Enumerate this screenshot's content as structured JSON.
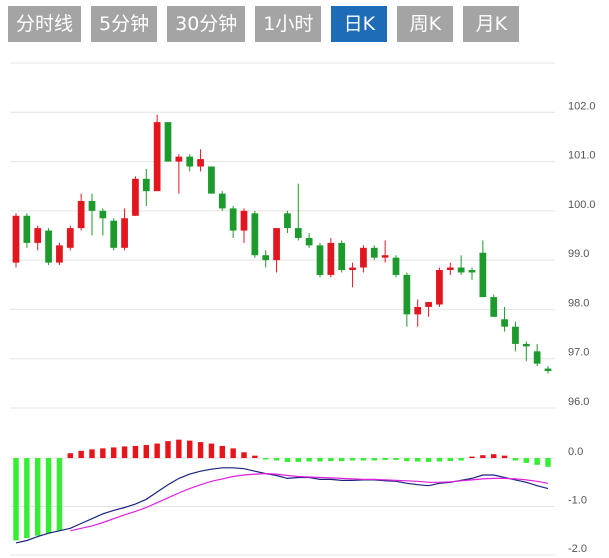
{
  "tabs": [
    "分时线",
    "5分钟",
    "30分钟",
    "1小时",
    "日K",
    "周K",
    "月K"
  ],
  "active_tab": 4,
  "chart_data": [
    {
      "type": "candlestick",
      "up_color": "#e3161f",
      "down_color": "#1d9a2c",
      "ylim": [
        96,
        103
      ],
      "yticks": [
        {
          "value": 96,
          "label": "96.0"
        },
        {
          "value": 97,
          "label": "97.0"
        },
        {
          "value": 98,
          "label": "98.0"
        },
        {
          "value": 99,
          "label": "99.0"
        },
        {
          "value": 100,
          "label": "100.0"
        },
        {
          "value": 101,
          "label": "101.0"
        },
        {
          "value": 102,
          "label": "102.0"
        },
        103
      ],
      "ohlc": [
        [
          98.95,
          99.95,
          98.85,
          99.9
        ],
        [
          99.9,
          99.95,
          99.25,
          99.35
        ],
        [
          99.35,
          99.7,
          99.2,
          99.65
        ],
        [
          99.6,
          99.65,
          98.9,
          98.95
        ],
        [
          98.95,
          99.35,
          98.9,
          99.3
        ],
        [
          99.25,
          99.7,
          99.2,
          99.65
        ],
        [
          99.65,
          100.35,
          99.6,
          100.2
        ],
        [
          100.2,
          100.35,
          99.5,
          100.0
        ],
        [
          100.0,
          100.05,
          99.5,
          99.85
        ],
        [
          99.8,
          99.85,
          99.2,
          99.25
        ],
        [
          99.25,
          100.05,
          99.2,
          99.85
        ],
        [
          99.9,
          100.7,
          99.9,
          100.65
        ],
        [
          100.65,
          100.85,
          100.1,
          100.4
        ],
        [
          100.4,
          101.95,
          100.4,
          101.8
        ],
        [
          101.8,
          101.8,
          101.0,
          101.0
        ],
        [
          101.0,
          101.15,
          100.35,
          101.1
        ],
        [
          101.1,
          101.15,
          100.8,
          100.9
        ],
        [
          100.9,
          101.25,
          100.8,
          101.05
        ],
        [
          100.9,
          100.9,
          100.35,
          100.35
        ],
        [
          100.35,
          100.4,
          100.0,
          100.05
        ],
        [
          100.05,
          100.1,
          99.45,
          99.6
        ],
        [
          99.6,
          100.05,
          99.35,
          100.0
        ],
        [
          99.95,
          100.0,
          99.05,
          99.1
        ],
        [
          99.1,
          99.2,
          98.85,
          99.0
        ],
        [
          99.0,
          99.65,
          98.75,
          99.65
        ],
        [
          99.95,
          100.0,
          99.55,
          99.65
        ],
        [
          99.65,
          100.55,
          99.4,
          99.45
        ],
        [
          99.45,
          99.55,
          99.25,
          99.3
        ],
        [
          99.3,
          99.35,
          98.65,
          98.7
        ],
        [
          98.7,
          99.45,
          98.65,
          99.35
        ],
        [
          99.35,
          99.4,
          98.75,
          98.8
        ],
        [
          98.8,
          98.95,
          98.45,
          98.85
        ],
        [
          98.85,
          99.3,
          98.75,
          99.25
        ],
        [
          99.25,
          99.3,
          99.0,
          99.05
        ],
        [
          99.05,
          99.4,
          98.95,
          99.1
        ],
        [
          99.05,
          99.1,
          98.65,
          98.7
        ],
        [
          98.7,
          98.75,
          97.65,
          97.9
        ],
        [
          97.9,
          98.2,
          97.65,
          98.05
        ],
        [
          98.05,
          98.15,
          97.85,
          98.15
        ],
        [
          98.1,
          98.85,
          98.05,
          98.8
        ],
        [
          98.8,
          98.95,
          98.7,
          98.85
        ],
        [
          98.85,
          99.1,
          98.7,
          98.75
        ],
        [
          98.8,
          98.85,
          98.6,
          98.75
        ],
        [
          99.15,
          99.4,
          98.25,
          98.25
        ],
        [
          98.25,
          98.3,
          97.85,
          97.85
        ],
        [
          97.8,
          98.05,
          97.55,
          97.65
        ],
        [
          97.65,
          97.75,
          97.15,
          97.3
        ],
        [
          97.3,
          97.35,
          96.95,
          97.25
        ],
        [
          97.15,
          97.3,
          96.85,
          96.9
        ],
        [
          96.8,
          96.85,
          96.7,
          96.75
        ]
      ]
    },
    {
      "type": "macd",
      "ylim": [
        -2,
        0.93
      ],
      "yticks": [
        {
          "value": -2,
          "label": "-2.0"
        },
        {
          "value": -1,
          "label": "-1.0"
        },
        {
          "value": 0,
          "label": "0.0"
        }
      ],
      "histogram": {
        "up_color": "#e8141c",
        "down_color": "#33ee33",
        "values": [
          -1.7,
          -1.65,
          -1.6,
          -1.55,
          -1.5,
          0.1,
          0.15,
          0.18,
          0.2,
          0.22,
          0.24,
          0.25,
          0.27,
          0.3,
          0.35,
          0.38,
          0.36,
          0.33,
          0.3,
          0.25,
          0.2,
          0.12,
          0.05,
          -0.03,
          -0.05,
          -0.08,
          -0.08,
          -0.07,
          -0.07,
          -0.06,
          -0.06,
          -0.05,
          -0.05,
          -0.05,
          -0.04,
          -0.04,
          -0.06,
          -0.07,
          -0.08,
          -0.07,
          -0.06,
          -0.05,
          0.03,
          0.06,
          0.08,
          0.05,
          -0.05,
          -0.1,
          -0.14,
          -0.18
        ]
      },
      "series": [
        {
          "color": "#1a237e",
          "values": [
            -1.75,
            -1.7,
            -1.62,
            -1.55,
            -1.5,
            -1.45,
            -1.35,
            -1.25,
            -1.15,
            -1.08,
            -1.02,
            -0.95,
            -0.85,
            -0.7,
            -0.55,
            -0.42,
            -0.33,
            -0.27,
            -0.23,
            -0.2,
            -0.2,
            -0.22,
            -0.27,
            -0.32,
            -0.36,
            -0.42,
            -0.4,
            -0.4,
            -0.44,
            -0.44,
            -0.46,
            -0.46,
            -0.45,
            -0.45,
            -0.47,
            -0.48,
            -0.52,
            -0.55,
            -0.57,
            -0.52,
            -0.5,
            -0.46,
            -0.42,
            -0.35,
            -0.35,
            -0.4,
            -0.45,
            -0.5,
            -0.57,
            -0.63
          ]
        },
        {
          "color": "#e020e0",
          "values": [
            null,
            null,
            null,
            null,
            null,
            -1.5,
            -1.45,
            -1.4,
            -1.33,
            -1.25,
            -1.17,
            -1.1,
            -1.02,
            -0.92,
            -0.82,
            -0.72,
            -0.63,
            -0.55,
            -0.48,
            -0.43,
            -0.38,
            -0.35,
            -0.33,
            -0.32,
            -0.33,
            -0.36,
            -0.38,
            -0.39,
            -0.4,
            -0.41,
            -0.42,
            -0.43,
            -0.44,
            -0.44,
            -0.45,
            -0.46,
            -0.47,
            -0.48,
            -0.5,
            -0.5,
            -0.49,
            -0.47,
            -0.45,
            -0.43,
            -0.42,
            -0.42,
            -0.43,
            -0.45,
            -0.48,
            -0.52
          ]
        }
      ]
    }
  ]
}
